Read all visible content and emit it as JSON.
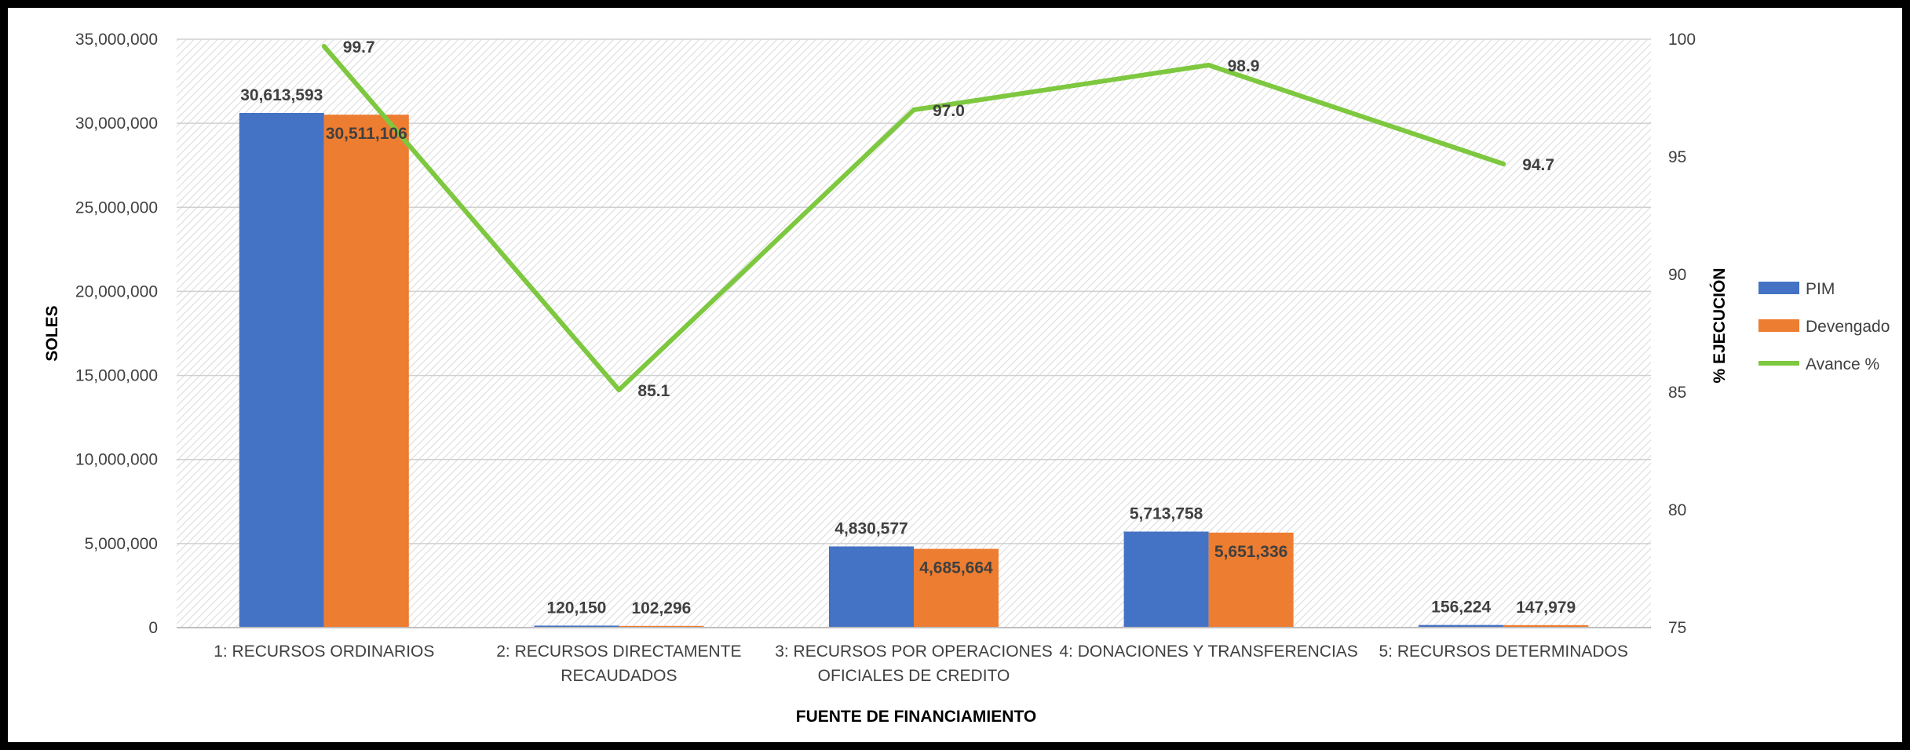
{
  "chart_data": {
    "type": "bar",
    "categories": [
      [
        "1: RECURSOS ORDINARIOS"
      ],
      [
        "2: RECURSOS DIRECTAMENTE",
        "RECAUDADOS"
      ],
      [
        "3: RECURSOS POR OPERACIONES",
        "OFICIALES DE CREDITO"
      ],
      [
        "4: DONACIONES Y TRANSFERENCIAS"
      ],
      [
        "5: RECURSOS DETERMINADOS"
      ]
    ],
    "series": [
      {
        "name": "PIM",
        "type": "bar",
        "axis": "left",
        "color": "#4472C4",
        "values": [
          30613593,
          120150,
          4830577,
          5713758,
          156224
        ],
        "labels": [
          "30,613,593",
          "120,150",
          "4,830,577",
          "5,713,758",
          "156,224"
        ]
      },
      {
        "name": "Devengado",
        "type": "bar",
        "axis": "left",
        "color": "#ED7D31",
        "values": [
          30511106,
          102296,
          4685664,
          5651336,
          147979
        ],
        "labels": [
          "30,511,106",
          "102,296",
          "4,685,664",
          "5,651,336",
          "147,979"
        ]
      },
      {
        "name": "Avance %",
        "type": "line",
        "axis": "right",
        "color": "#7DC83F",
        "values": [
          99.7,
          85.1,
          97.0,
          98.9,
          94.7
        ],
        "labels": [
          "99.7",
          "85.1",
          "97.0",
          "98.9",
          "94.7"
        ]
      }
    ],
    "xlabel": "FUENTE DE FINANCIAMIENTO",
    "ylabel": "SOLES",
    "y2label": "% EJECUCIÓN",
    "ylim": [
      0,
      35000000
    ],
    "y2lim": [
      75,
      100
    ],
    "yticks": [
      "0",
      "5,000,000",
      "10,000,000",
      "15,000,000",
      "20,000,000",
      "25,000,000",
      "30,000,000",
      "35,000,000"
    ],
    "y2ticks": [
      "75",
      "80",
      "85",
      "90",
      "95",
      "100"
    ],
    "grid": true,
    "legend": "right"
  }
}
